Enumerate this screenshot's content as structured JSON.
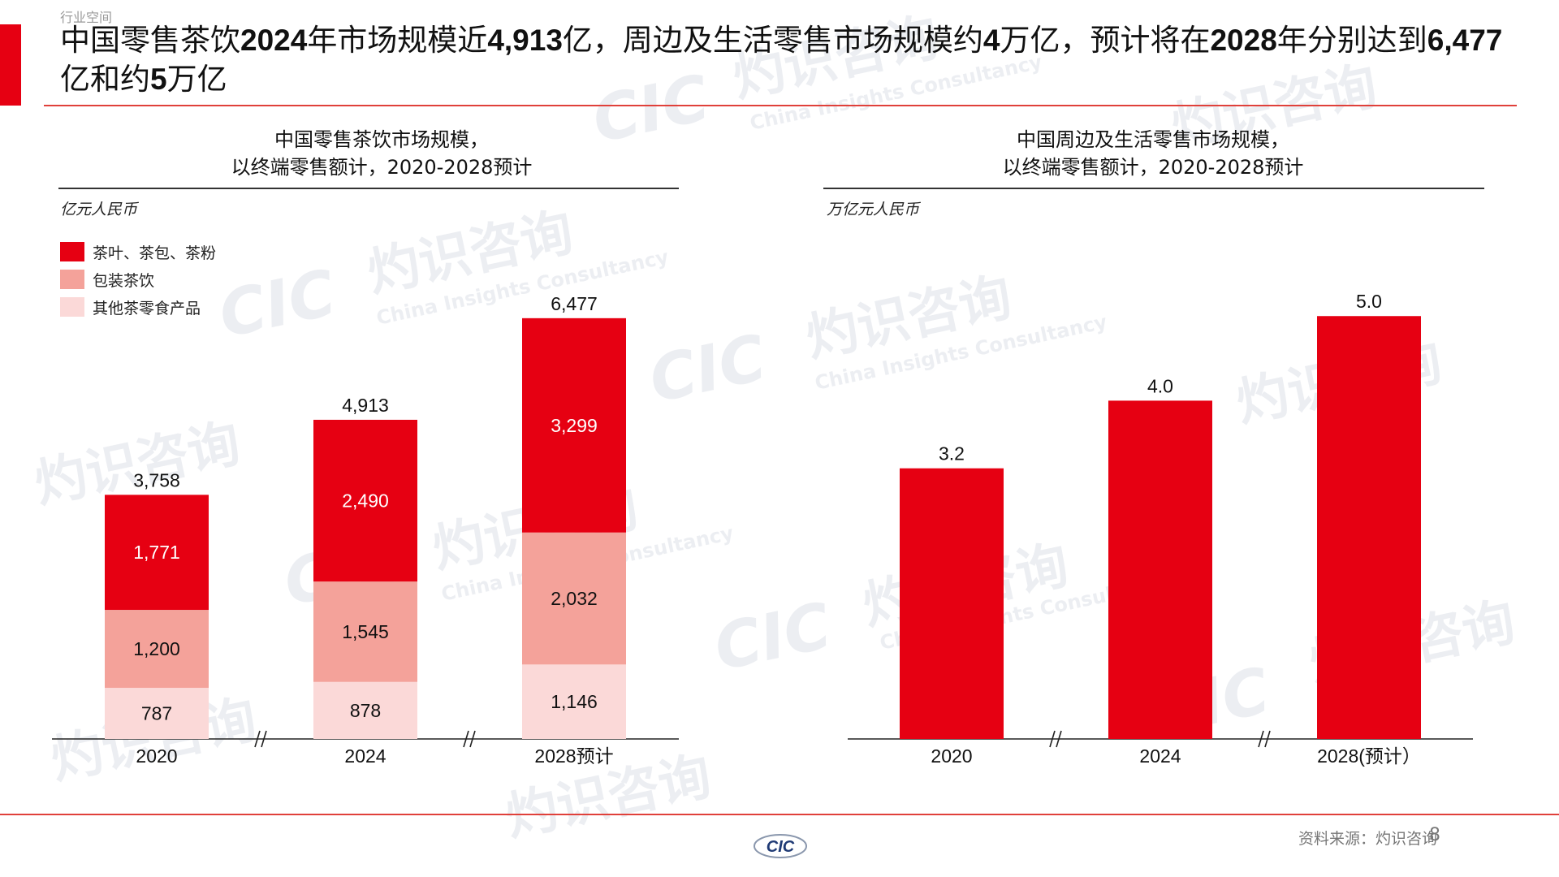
{
  "header": {
    "top_label": "行业空间",
    "headline_parts": [
      {
        "t": "中国零售茶饮",
        "b": false
      },
      {
        "t": "2024",
        "b": true
      },
      {
        "t": "年市场规模近",
        "b": false
      },
      {
        "t": "4,913",
        "b": true
      },
      {
        "t": "亿，周边及生活零售市场规模约",
        "b": false
      },
      {
        "t": "4",
        "b": true
      },
      {
        "t": "万亿，预计将在",
        "b": false
      },
      {
        "t": "2028",
        "b": true
      },
      {
        "t": "年分别达到",
        "b": false
      },
      {
        "t": "6,477",
        "b": true
      },
      {
        "t": "亿和约",
        "b": false
      },
      {
        "t": "5",
        "b": true
      },
      {
        "t": "万亿",
        "b": false
      }
    ]
  },
  "left": {
    "title_line1": "中国零售茶饮市场规模，",
    "title_line2": "以终端零售额计，2020-2028预计",
    "unit": "亿元人民币"
  },
  "right": {
    "title_line1": "中国周边及生活零售市场规模，",
    "title_line2": "以终端零售额计，2020-2028预计",
    "unit": "万亿元人民币"
  },
  "colors": {
    "primary": "#e60012",
    "mid": "#f4a29a",
    "light": "#fbd9d8"
  },
  "chart_data": [
    {
      "type": "bar",
      "stacked": true,
      "categories": [
        "2020",
        "2024",
        "2028预计"
      ],
      "series": [
        {
          "name": "其他茶零食产品",
          "values": [
            787,
            878,
            1146
          ]
        },
        {
          "name": "包装茶饮",
          "values": [
            1200,
            1545,
            2032
          ]
        },
        {
          "name": "茶叶、茶包、茶粉",
          "values": [
            1771,
            2490,
            3299
          ]
        }
      ],
      "segment_labels": [
        [
          "787",
          "878",
          "1,146"
        ],
        [
          "1,200",
          "1,545",
          "2,032"
        ],
        [
          "1,771",
          "2,490",
          "3,299"
        ]
      ],
      "totals": [
        3758,
        4913,
        6477
      ],
      "total_labels": [
        "3,758",
        "4,913",
        "6,477"
      ],
      "legend": [
        "茶叶、茶包、茶粉",
        "包装茶饮",
        "其他茶零食产品"
      ],
      "legend_position": "top-left",
      "axis_breaks": true,
      "ylim": [
        0,
        6900
      ]
    },
    {
      "type": "bar",
      "categories": [
        "2020",
        "2024",
        "2028(预计）"
      ],
      "values": [
        3.2,
        4.0,
        5.0
      ],
      "value_labels": [
        "3.2",
        "4.0",
        "5.0"
      ],
      "axis_breaks": true,
      "ylim": [
        0,
        5.3
      ]
    }
  ],
  "footer": {
    "source": "资料来源：灼识咨询",
    "page": "8",
    "logo_text": "CIC"
  },
  "watermark": {
    "cn": "灼识咨询",
    "en": "China Insights Consultancy",
    "logo": "CIC"
  }
}
